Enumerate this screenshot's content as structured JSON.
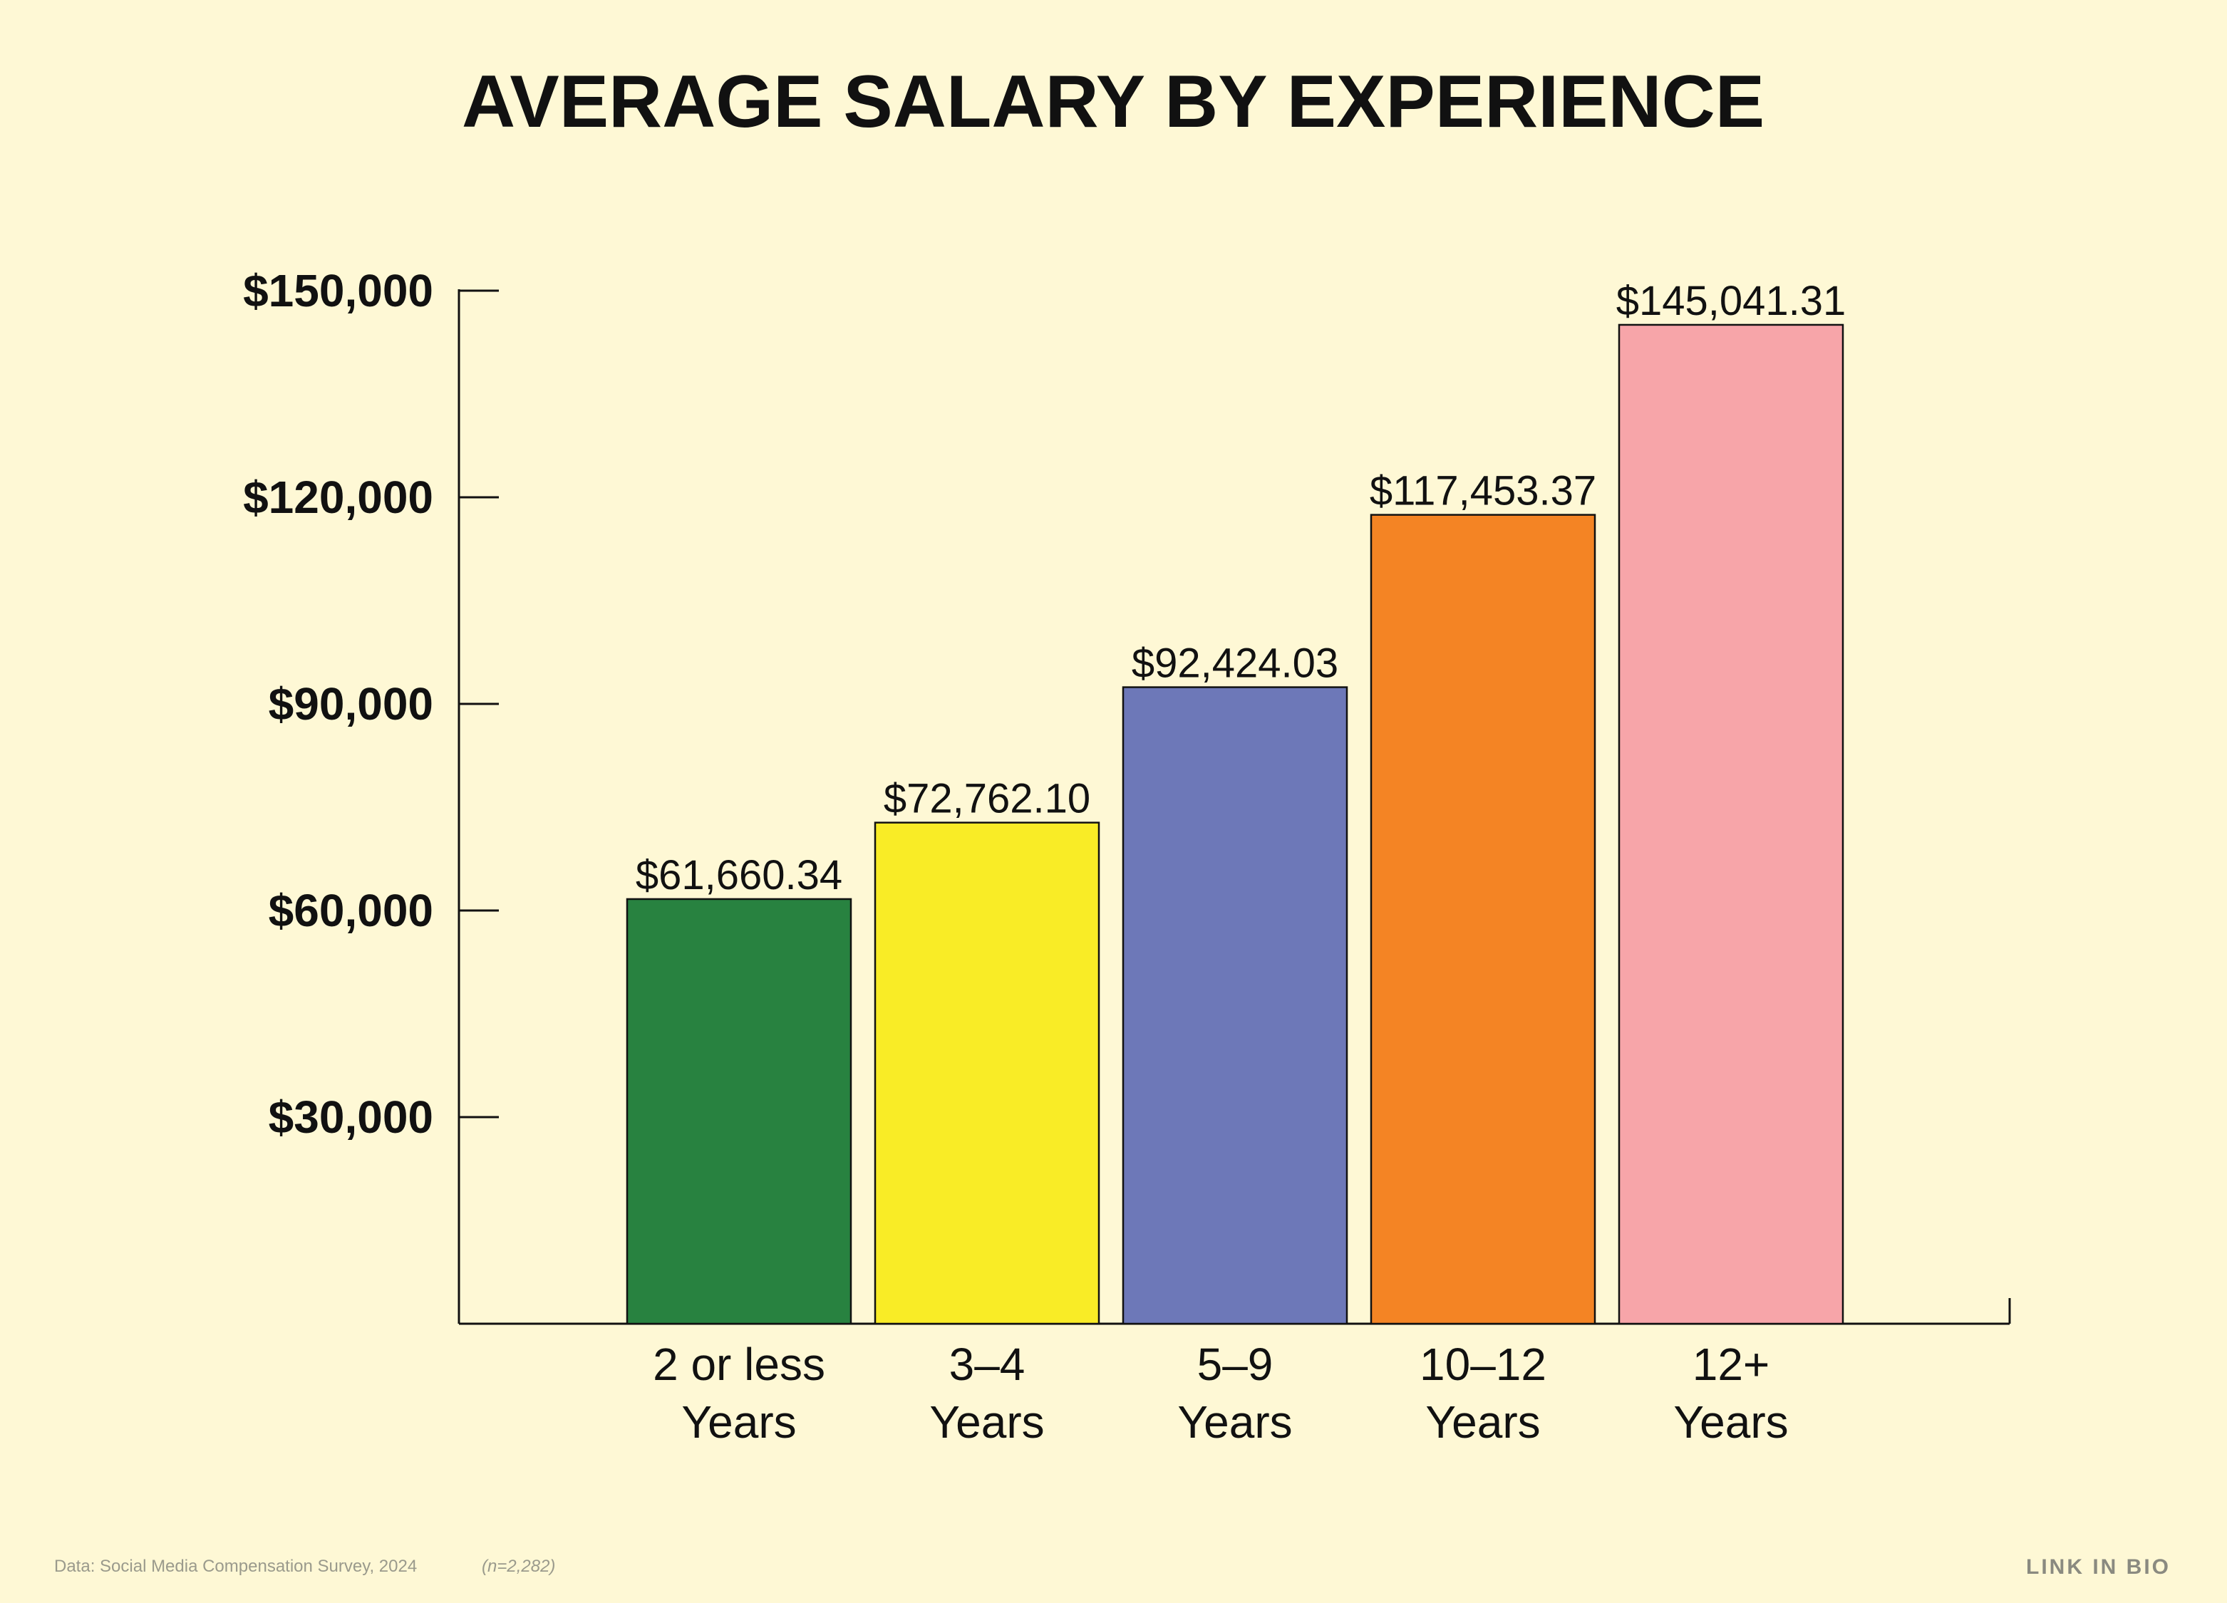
{
  "chart_data": {
    "type": "bar",
    "title": "AVERAGE SALARY BY EXPERIENCE",
    "xlabel": "",
    "ylabel": "",
    "categories": [
      [
        "2 or less",
        "Years"
      ],
      [
        "3–4",
        "Years"
      ],
      [
        "5–9",
        "Years"
      ],
      [
        "10–12",
        "Years"
      ],
      [
        "12+",
        "Years"
      ]
    ],
    "values": [
      61660.34,
      72762.1,
      92424.03,
      117453.37,
      145041.31
    ],
    "data_labels": [
      "$61,660.34",
      "$72,762.10",
      "$92,424.03",
      "$117,453.37",
      "$145,041.31"
    ],
    "bar_colors": [
      "#288240",
      "#F9EC26",
      "#6D78B8",
      "#F48424",
      "#F7A5A9"
    ],
    "ylim": [
      0,
      150000
    ],
    "yticks": [
      30000,
      60000,
      90000,
      120000,
      150000
    ],
    "ytick_labels": [
      "$30,000",
      "$60,000",
      "$90,000",
      "$120,000",
      "$150,000"
    ],
    "grid": false,
    "legend": "none"
  },
  "footer": {
    "source": "Data: Social Media Compensation Survey, 2024",
    "sample_size": "(n=2,282)",
    "brand": "LINK IN BIO"
  },
  "colors": {
    "background": "#FEF8D5",
    "axis": "#111111"
  }
}
